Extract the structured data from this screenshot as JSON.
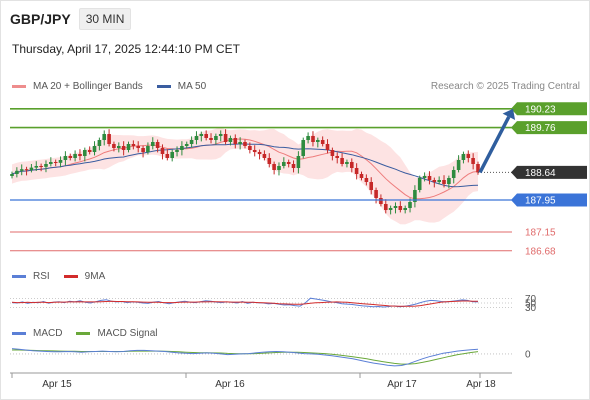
{
  "header": {
    "pair": "GBP/JPY",
    "timeframe": "30 MIN",
    "datetime": "Thursday, April 17, 2025 12:44:10 PM CET"
  },
  "legend": {
    "ma20": "MA 20 + Bollinger Bands",
    "ma50": "MA 50",
    "credit": "Research © 2025 Trading Central"
  },
  "rsi_legend": {
    "rsi": "RSI",
    "ma": "9MA"
  },
  "macd_legend": {
    "macd": "MACD",
    "signal": "MACD Signal"
  },
  "colors": {
    "resistance": "#5aa02c",
    "pivot": "#3b74d8",
    "support": "#e06b6b",
    "current": "#333333",
    "ma20": "#ee7c7c",
    "ma50": "#3a5da0",
    "band_fill": "#fde3e3",
    "up_candle": "#2e8b3f",
    "down_candle": "#c62828",
    "arrow": "#2f5e9e",
    "rsi": "#5b7fd6",
    "rsi_ma": "#d22b2b",
    "macd": "#5b7fd6",
    "macd_signal": "#6aa83a"
  },
  "chart_data": {
    "type": "candlestick",
    "price_axis_range": [
      186.4,
      190.6
    ],
    "x_labels": [
      "Apr 15",
      "Apr 16",
      "Apr 17",
      "Apr 18"
    ],
    "levels": [
      {
        "value": "190.23",
        "kind": "resistance"
      },
      {
        "value": "189.76",
        "kind": "resistance"
      },
      {
        "value": "188.64",
        "kind": "current"
      },
      {
        "value": "187.95",
        "kind": "pivot"
      },
      {
        "value": "187.15",
        "kind": "support"
      },
      {
        "value": "186.68",
        "kind": "support"
      }
    ],
    "projection": {
      "from": 188.64,
      "to": 190.23
    },
    "closes": [
      188.6,
      188.68,
      188.72,
      188.7,
      188.76,
      188.8,
      188.78,
      188.85,
      188.9,
      188.88,
      188.95,
      189.05,
      189.0,
      189.1,
      189.05,
      189.2,
      189.15,
      189.3,
      189.45,
      189.6,
      189.35,
      189.25,
      189.3,
      189.2,
      189.35,
      189.3,
      189.25,
      189.15,
      189.3,
      189.4,
      189.25,
      189.1,
      189.0,
      189.15,
      189.2,
      189.3,
      189.35,
      189.45,
      189.55,
      189.6,
      189.5,
      189.45,
      189.55,
      189.6,
      189.4,
      189.5,
      189.35,
      189.4,
      189.3,
      189.2,
      189.15,
      189.1,
      189.0,
      188.85,
      188.7,
      188.8,
      188.9,
      188.85,
      188.75,
      189.05,
      189.45,
      189.55,
      189.4,
      189.45,
      189.35,
      189.2,
      189.05,
      189.0,
      188.85,
      188.9,
      188.75,
      188.6,
      188.5,
      188.4,
      188.2,
      188.0,
      187.85,
      187.7,
      187.75,
      187.8,
      187.7,
      187.75,
      187.9,
      188.2,
      188.5,
      188.55,
      188.45,
      188.4,
      188.45,
      188.35,
      188.5,
      188.7,
      188.95,
      189.1,
      189.0,
      188.85,
      188.64
    ],
    "ma50_axis_range": [
      186.4,
      190.6
    ],
    "rsi": {
      "ticks": [
        "70",
        "50",
        "30"
      ],
      "range": [
        0,
        100
      ],
      "rsi_values": [
        52,
        50,
        55,
        48,
        53,
        51,
        57,
        49,
        54,
        56,
        52,
        58,
        55,
        60,
        53,
        50,
        56,
        62,
        65,
        58,
        55,
        57,
        52,
        55,
        53,
        50,
        48,
        54,
        57,
        51,
        47,
        52,
        55,
        58,
        54,
        52,
        56,
        60,
        58,
        54,
        52,
        55,
        53,
        50,
        57,
        48,
        53,
        51,
        50,
        46,
        48,
        44,
        41,
        42,
        38,
        36,
        50,
        72,
        68,
        64,
        60,
        55,
        52,
        47,
        45,
        43,
        40,
        37,
        35,
        33,
        34,
        32,
        34,
        37,
        33,
        35,
        39,
        44,
        52,
        58,
        62,
        60,
        57,
        55,
        58,
        61,
        64,
        62,
        56,
        55
      ],
      "ma_values": [
        53,
        52,
        52,
        53,
        52,
        53,
        53,
        52,
        53,
        54,
        54,
        55,
        55,
        56,
        55,
        55,
        55,
        56,
        57,
        58,
        57,
        57,
        56,
        56,
        55,
        54,
        53,
        53,
        53,
        52,
        52,
        52,
        53,
        54,
        54,
        54,
        55,
        55,
        56,
        56,
        55,
        55,
        54,
        54,
        54,
        53,
        53,
        52,
        51,
        50,
        49,
        47,
        46,
        45,
        44,
        44,
        46,
        49,
        51,
        52,
        53,
        54,
        55,
        54,
        53,
        51,
        49,
        47,
        45,
        43,
        41,
        39,
        37,
        36,
        35,
        35,
        35,
        36,
        38,
        42,
        46,
        50,
        54,
        56,
        57,
        58,
        59,
        59,
        58,
        58
      ]
    },
    "macd": {
      "tick": "0",
      "macd_values": [
        0.3,
        0.26,
        0.22,
        0.18,
        0.16,
        0.14,
        0.12,
        0.12,
        0.14,
        0.12,
        0.1,
        0.12,
        0.14,
        0.16,
        0.14,
        0.12,
        0.14,
        0.18,
        0.2,
        0.2,
        0.18,
        0.16,
        0.14,
        0.1,
        0.06,
        0.04,
        0.02,
        0.04,
        0.06,
        0.04,
        0.0,
        -0.04,
        -0.02,
        0.0,
        0.02,
        0.06,
        0.1,
        0.12,
        0.14,
        0.12,
        0.1,
        0.06,
        0.02,
        0.0,
        -0.02,
        -0.06,
        -0.1,
        -0.16,
        -0.22,
        -0.28,
        -0.36,
        -0.44,
        -0.52,
        -0.58,
        -0.64,
        -0.68,
        -0.66,
        -0.56,
        -0.42,
        -0.28,
        -0.16,
        -0.06,
        0.04,
        0.1,
        0.16,
        0.2,
        0.24,
        0.26
      ],
      "signal_values": [
        0.22,
        0.22,
        0.21,
        0.2,
        0.19,
        0.18,
        0.17,
        0.16,
        0.15,
        0.15,
        0.14,
        0.14,
        0.14,
        0.14,
        0.14,
        0.14,
        0.14,
        0.15,
        0.16,
        0.16,
        0.16,
        0.16,
        0.15,
        0.14,
        0.12,
        0.1,
        0.08,
        0.07,
        0.07,
        0.06,
        0.05,
        0.03,
        0.02,
        0.01,
        0.01,
        0.02,
        0.04,
        0.06,
        0.08,
        0.09,
        0.1,
        0.09,
        0.08,
        0.06,
        0.04,
        0.02,
        -0.02,
        -0.06,
        -0.11,
        -0.16,
        -0.22,
        -0.28,
        -0.35,
        -0.42,
        -0.48,
        -0.54,
        -0.58,
        -0.58,
        -0.55,
        -0.48,
        -0.4,
        -0.31,
        -0.22,
        -0.13,
        -0.05,
        0.02,
        0.08,
        0.13
      ],
      "range": [
        -0.8,
        0.45
      ]
    }
  }
}
